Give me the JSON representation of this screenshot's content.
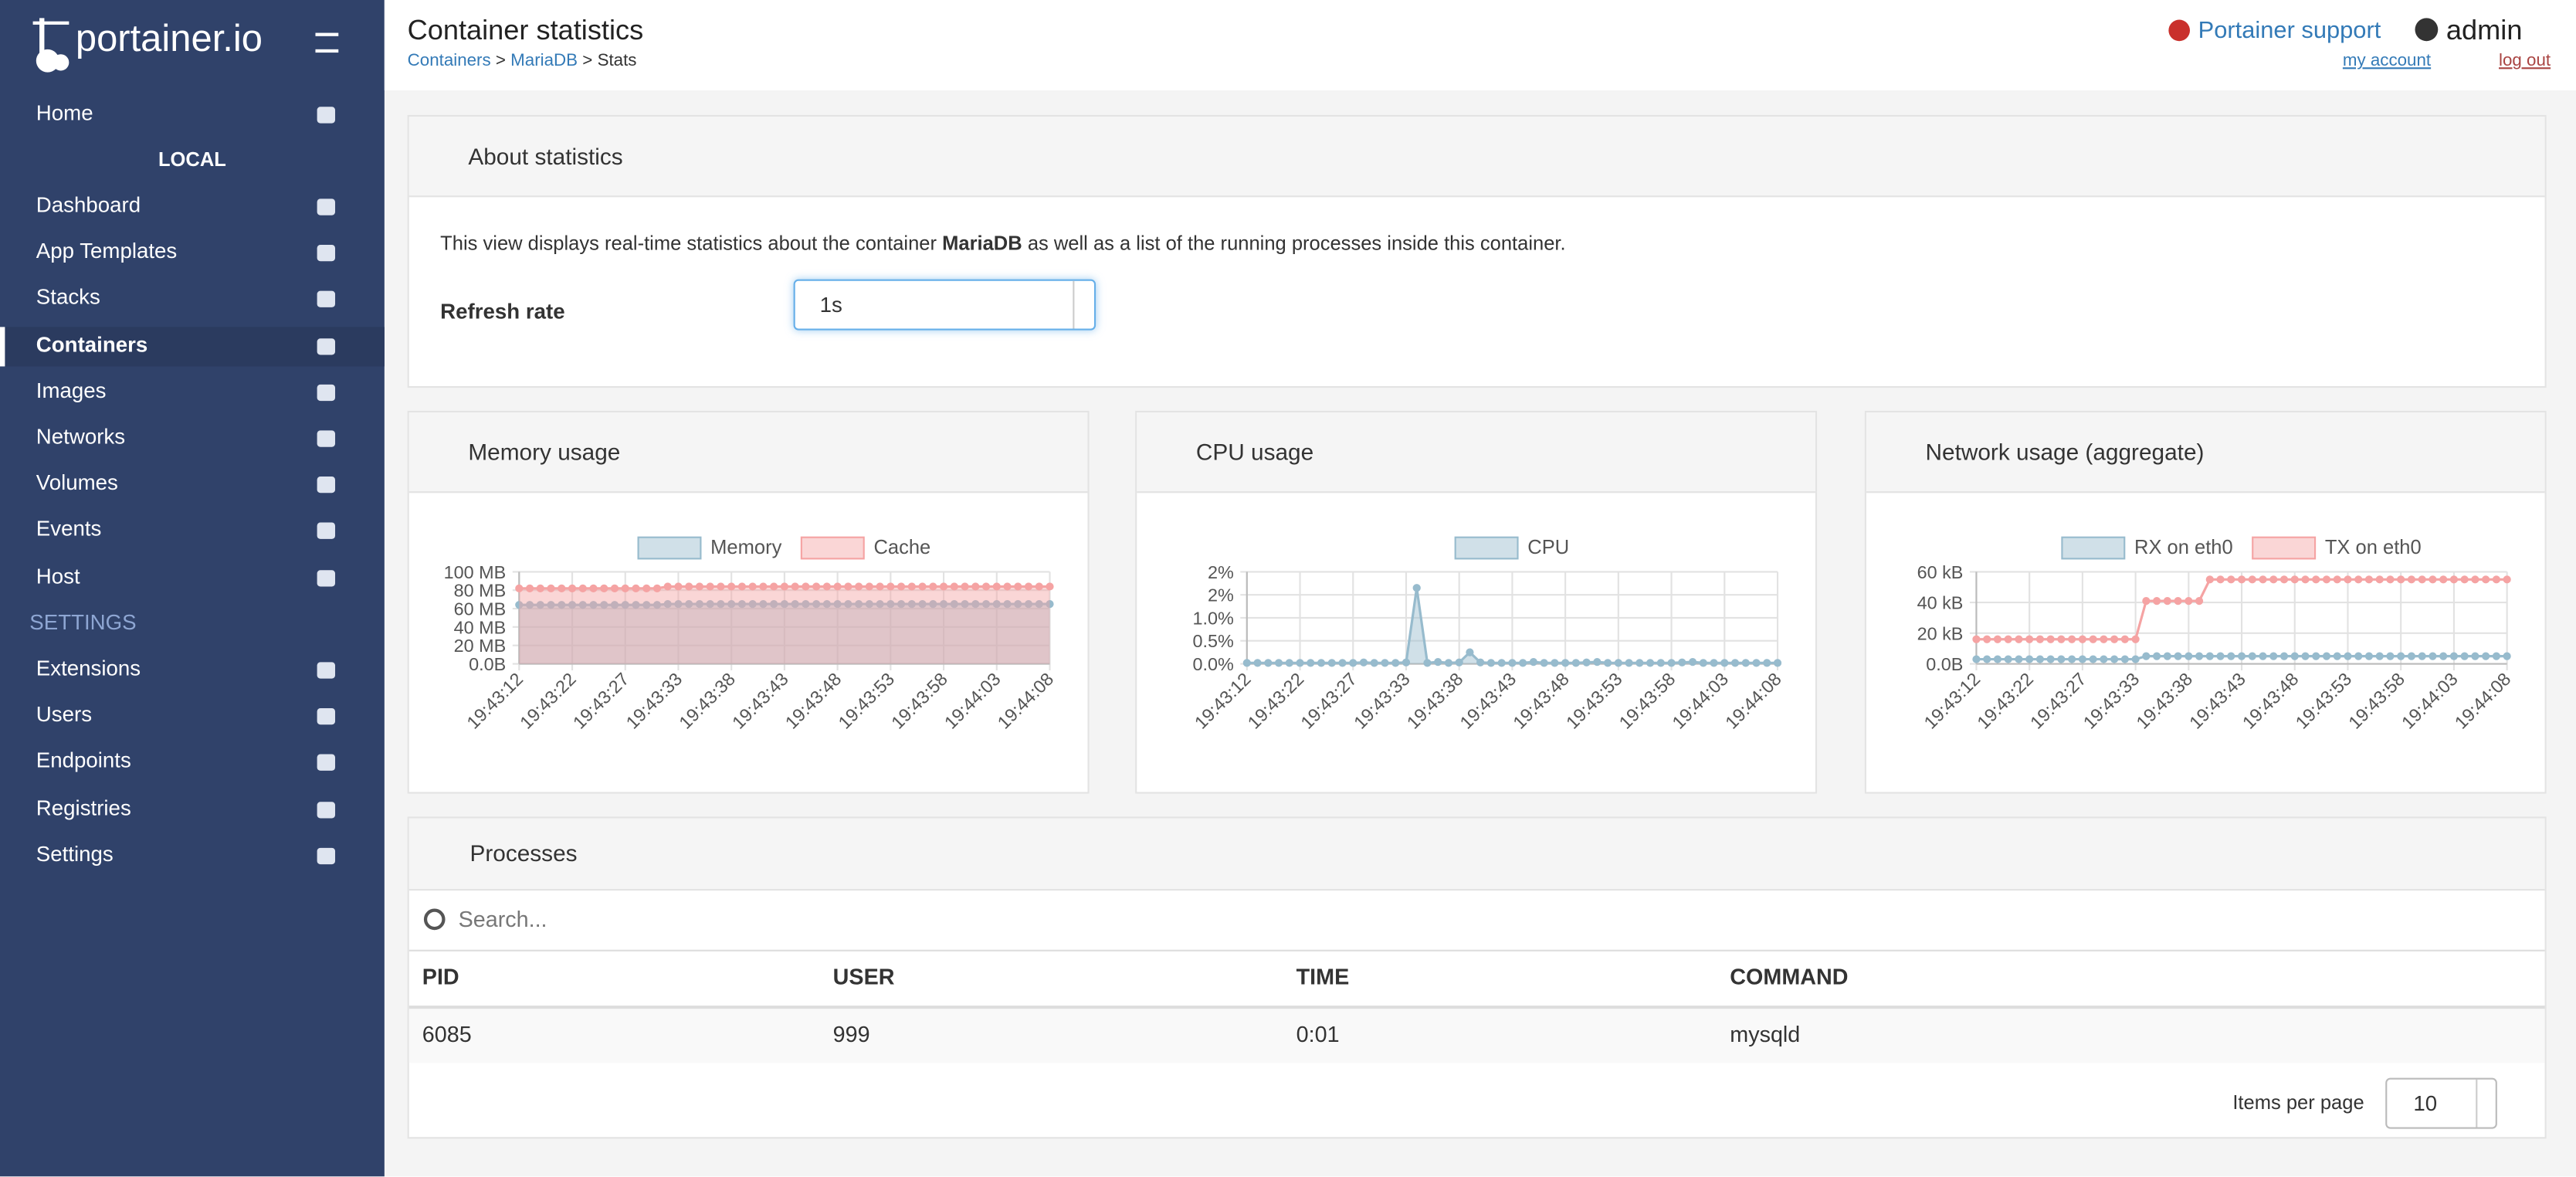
{
  "sidebar": {
    "brand": "portainer.io",
    "home": "Home",
    "endpoint": "LOCAL",
    "items": [
      "Dashboard",
      "App Templates",
      "Stacks",
      "Containers",
      "Images",
      "Networks",
      "Volumes",
      "Events",
      "Host"
    ],
    "settings_header": "SETTINGS",
    "settings_items": [
      "Extensions",
      "Users",
      "Endpoints",
      "Registries",
      "Settings"
    ]
  },
  "header": {
    "title": "Container statistics",
    "breadcrumb": [
      "Containers",
      "MariaDB",
      "Stats"
    ],
    "separator": ">",
    "support": "Portainer support",
    "user": "admin",
    "my_account": "my account",
    "log_out": "log out"
  },
  "about": {
    "title": "About statistics",
    "text_before": "This view displays real-time statistics about the container",
    "container": "MariaDB",
    "text_after": "as well as a list of the running processes inside this container.",
    "refresh_label": "Refresh rate",
    "refresh_value": "1s"
  },
  "chart_data": [
    {
      "type": "line",
      "title": "Memory usage",
      "fill": true,
      "grid": true,
      "legend": "top",
      "categories": [
        "19:43:12",
        null,
        null,
        null,
        null,
        "19:43:22",
        null,
        null,
        null,
        null,
        "19:43:27",
        null,
        null,
        null,
        null,
        "19:43:33",
        null,
        null,
        null,
        null,
        "19:43:38",
        null,
        null,
        null,
        null,
        "19:43:43",
        null,
        null,
        null,
        null,
        "19:43:48",
        null,
        null,
        null,
        null,
        "19:43:53",
        null,
        null,
        null,
        null,
        "19:43:58",
        null,
        null,
        null,
        null,
        "19:44:03",
        null,
        null,
        null,
        null,
        "19:44:08"
      ],
      "series": [
        {
          "name": "Memory",
          "color": "#97bbcd",
          "values": [
            64,
            64,
            64,
            64,
            64,
            64,
            64,
            64,
            64,
            64,
            64,
            64,
            64,
            64,
            65,
            65,
            65,
            65,
            65,
            65,
            65,
            65,
            65,
            65,
            65,
            65,
            65,
            65,
            65,
            65,
            65,
            65,
            65,
            65,
            65,
            65,
            65,
            65,
            65,
            65,
            65,
            65,
            65,
            65,
            65,
            65,
            65,
            65,
            65,
            65,
            65
          ]
        },
        {
          "name": "Cache",
          "color": "#f5a3a3",
          "values": [
            82,
            82,
            82,
            82,
            82,
            82,
            82,
            82,
            82,
            82,
            82,
            82,
            82,
            82,
            84,
            84,
            84,
            84,
            84,
            84,
            84,
            84,
            84,
            84,
            84,
            84,
            84,
            84,
            84,
            84,
            84,
            84,
            84,
            84,
            84,
            84,
            84,
            84,
            84,
            84,
            84,
            84,
            84,
            84,
            84,
            84,
            84,
            84,
            84,
            84,
            84
          ]
        }
      ],
      "ylim": [
        0,
        100
      ],
      "yticks": [
        {
          "value": 0,
          "label": "0.0B"
        },
        {
          "value": 20,
          "label": "20 MB"
        },
        {
          "value": 40,
          "label": "40 MB"
        },
        {
          "value": 60,
          "label": "60 MB"
        },
        {
          "value": 80,
          "label": "80 MB"
        },
        {
          "value": 100,
          "label": "100 MB"
        }
      ]
    },
    {
      "type": "line",
      "title": "CPU usage",
      "fill": true,
      "grid": true,
      "legend": "top",
      "categories": [
        "19:43:12",
        null,
        null,
        null,
        null,
        "19:43:22",
        null,
        null,
        null,
        null,
        "19:43:27",
        null,
        null,
        null,
        null,
        "19:43:33",
        null,
        null,
        null,
        null,
        "19:43:38",
        null,
        null,
        null,
        null,
        "19:43:43",
        null,
        null,
        null,
        null,
        "19:43:48",
        null,
        null,
        null,
        null,
        "19:43:53",
        null,
        null,
        null,
        null,
        "19:43:58",
        null,
        null,
        null,
        null,
        "19:44:03",
        null,
        null,
        null,
        null,
        "19:44:08"
      ],
      "series": [
        {
          "name": "CPU",
          "color": "#97bbcd",
          "values": [
            0.02,
            0.02,
            0.02,
            0.02,
            0.02,
            0.02,
            0.02,
            0.02,
            0.02,
            0.02,
            0.02,
            0.03,
            0.02,
            0.02,
            0.02,
            0.03,
            1.65,
            0.02,
            0.04,
            0.02,
            0.03,
            0.25,
            0.03,
            0.02,
            0.02,
            0.02,
            0.02,
            0.04,
            0.02,
            0.02,
            0.02,
            0.02,
            0.03,
            0.04,
            0.02,
            0.02,
            0.02,
            0.02,
            0.02,
            0.02,
            0.02,
            0.03,
            0.04,
            0.02,
            0.02,
            0.02,
            0.02,
            0.02,
            0.02,
            0.02,
            0.02
          ]
        }
      ],
      "ylim": [
        0,
        2
      ],
      "yticks": [
        {
          "value": 0,
          "label": "0.0%"
        },
        {
          "value": 0.5,
          "label": "0.5%"
        },
        {
          "value": 1,
          "label": "1.0%"
        },
        {
          "value": 1.5,
          "label": "2%"
        },
        {
          "value": 2,
          "label": "2%"
        }
      ]
    },
    {
      "type": "line",
      "title": "Network usage (aggregate)",
      "fill": false,
      "grid": true,
      "legend": "top",
      "categories": [
        "19:43:12",
        null,
        null,
        null,
        null,
        "19:43:22",
        null,
        null,
        null,
        null,
        "19:43:27",
        null,
        null,
        null,
        null,
        "19:43:33",
        null,
        null,
        null,
        null,
        "19:43:38",
        null,
        null,
        null,
        null,
        "19:43:43",
        null,
        null,
        null,
        null,
        "19:43:48",
        null,
        null,
        null,
        null,
        "19:43:53",
        null,
        null,
        null,
        null,
        "19:43:58",
        null,
        null,
        null,
        null,
        "19:44:03",
        null,
        null,
        null,
        null,
        "19:44:08"
      ],
      "series": [
        {
          "name": "RX on eth0",
          "color": "#97bbcd",
          "values": [
            3,
            3,
            3,
            3,
            3,
            3,
            3,
            3,
            3,
            3,
            3,
            3,
            3,
            3,
            3,
            3,
            5,
            5,
            5,
            5,
            5,
            5,
            5,
            5,
            5,
            5,
            5,
            5,
            5,
            5,
            5,
            5,
            5,
            5,
            5,
            5,
            5,
            5,
            5,
            5,
            5,
            5,
            5,
            5,
            5,
            5,
            5,
            5,
            5,
            5,
            5
          ]
        },
        {
          "name": "TX on eth0",
          "color": "#f5a3a3",
          "values": [
            16,
            16,
            16,
            16,
            16,
            16,
            16,
            16,
            16,
            16,
            16,
            16,
            16,
            16,
            16,
            16,
            41,
            41,
            41,
            41,
            41,
            41,
            55,
            55,
            55,
            55,
            55,
            55,
            55,
            55,
            55,
            55,
            55,
            55,
            55,
            55,
            55,
            55,
            55,
            55,
            55,
            55,
            55,
            55,
            55,
            55,
            55,
            55,
            55,
            55,
            55
          ]
        }
      ],
      "ylim": [
        0,
        60
      ],
      "yticks": [
        {
          "value": 0,
          "label": "0.0B"
        },
        {
          "value": 20,
          "label": "20 kB"
        },
        {
          "value": 40,
          "label": "40 kB"
        },
        {
          "value": 60,
          "label": "60 kB"
        }
      ]
    }
  ],
  "processes": {
    "title": "Processes",
    "search_placeholder": "Search...",
    "columns": [
      "PID",
      "USER",
      "TIME",
      "COMMAND"
    ],
    "rows": [
      [
        "6085",
        "999",
        "0:01",
        "mysqld"
      ]
    ],
    "items_per_page_label": "Items per page",
    "items_per_page": "10"
  }
}
